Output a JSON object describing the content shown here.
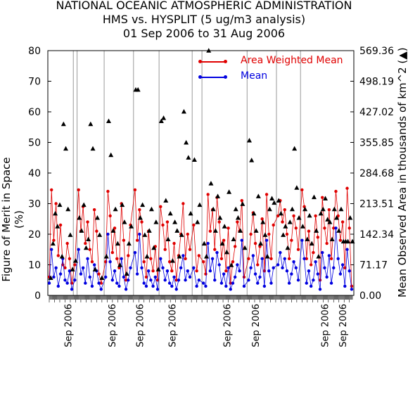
{
  "header": {
    "line1": "NATIONAL OCEANIC ATMOSPHERIC ADMINISTRATION",
    "line2": "HMS vs. HYSPLIT (5 ug/m3 analysis)",
    "line3": "01 Sep 2006 to 31 Aug 2006"
  },
  "legend": {
    "awm_label": "Area Weighted Mean",
    "mean_label": "Mean"
  },
  "axes": {
    "ylabel_left": "Figure of Merit in Space (%)",
    "ylabel_right": "Mean Observed Area in thousands of km^2 (▲)"
  },
  "colors": {
    "awm": "#e00000",
    "mean": "#0000e0",
    "area": "#000000",
    "grid": "#999999"
  },
  "chart_data": {
    "type": "line",
    "title": "",
    "ylim_left": [
      0,
      80
    ],
    "ylim_right": [
      0.0,
      569.36
    ],
    "yticks_left": [
      "0",
      "10",
      "20",
      "30",
      "40",
      "50",
      "60",
      "70",
      "80"
    ],
    "yticks_right": [
      "0.00",
      "71.17",
      "142.34",
      "213.51",
      "284.68",
      "355.85",
      "427.02",
      "498.19",
      "569.36"
    ],
    "x_tick_labels": [
      "Sep 2006",
      "Sep 2006",
      "Sep 2006",
      "Sep 2006",
      "Sep 2006",
      "Sep 2006",
      "Sep 2006",
      "Sep 2006"
    ],
    "x_tick_days": [
      25,
      83,
      120,
      163,
      236,
      274,
      366,
      390
    ],
    "segment_boundary_days": [
      32,
      37,
      73,
      112,
      146,
      190,
      203,
      263,
      302,
      334
    ],
    "n_days": 404,
    "series": [
      {
        "name": "Area Weighted Mean",
        "axis": "left",
        "x": [
          0,
          3,
          6,
          9,
          12,
          15,
          18,
          21,
          24,
          27,
          30,
          34,
          39,
          42,
          45,
          48,
          51,
          54,
          57,
          60,
          63,
          66,
          69,
          75,
          78,
          81,
          84,
          87,
          90,
          93,
          96,
          99,
          102,
          105,
          108,
          114,
          117,
          120,
          123,
          126,
          129,
          132,
          135,
          138,
          141,
          144,
          148,
          151,
          154,
          157,
          160,
          163,
          166,
          169,
          172,
          175,
          178,
          181,
          184,
          187,
          192,
          196,
          199,
          205,
          208,
          211,
          214,
          217,
          220,
          223,
          226,
          229,
          232,
          235,
          238,
          241,
          244,
          247,
          250,
          253,
          256,
          259,
          265,
          268,
          271,
          274,
          277,
          280,
          283,
          286,
          289,
          292,
          295,
          298,
          304,
          307,
          310,
          313,
          316,
          319,
          322,
          325,
          328,
          331,
          336,
          339,
          342,
          345,
          348,
          351,
          354,
          357,
          360,
          363,
          366,
          369,
          372,
          375,
          378,
          381,
          384,
          387,
          390,
          393,
          396,
          399,
          402
        ],
        "values": [
          6,
          34.5,
          18,
          30,
          13,
          23,
          10,
          9,
          17,
          12,
          4,
          10,
          34.5,
          21,
          29,
          17,
          24,
          15,
          11,
          28,
          21,
          7,
          4,
          11,
          34,
          26,
          14,
          22,
          12,
          9,
          30,
          18,
          5,
          13,
          23,
          34.5,
          18,
          28,
          24,
          11,
          6,
          21,
          12,
          8,
          16,
          5,
          29,
          23,
          15,
          24,
          11,
          8,
          17,
          5,
          13,
          20,
          30,
          12,
          20,
          15,
          23,
          8,
          13,
          11,
          7,
          33,
          21,
          28,
          15,
          32,
          24,
          12,
          18,
          8,
          22,
          4,
          11,
          16,
          24,
          21,
          31,
          6,
          12,
          20,
          27,
          17,
          10,
          16,
          25,
          8,
          33,
          20,
          12,
          23,
          26,
          31,
          24,
          28,
          20,
          12,
          18,
          26,
          22,
          15,
          34.5,
          29,
          12,
          21,
          10,
          14,
          26,
          19,
          5,
          32,
          22,
          17,
          28,
          12,
          22,
          34,
          26,
          18,
          24,
          9,
          35,
          22,
          3
        ]
      },
      {
        "name": "Mean",
        "axis": "left",
        "x": [
          0,
          3,
          6,
          9,
          12,
          15,
          18,
          21,
          24,
          27,
          30,
          34,
          39,
          42,
          45,
          48,
          51,
          54,
          57,
          60,
          63,
          66,
          69,
          75,
          78,
          81,
          84,
          87,
          90,
          93,
          96,
          99,
          102,
          105,
          108,
          114,
          117,
          120,
          123,
          126,
          129,
          132,
          135,
          138,
          141,
          144,
          148,
          151,
          154,
          157,
          160,
          163,
          166,
          169,
          172,
          175,
          178,
          181,
          184,
          187,
          192,
          196,
          199,
          205,
          208,
          211,
          214,
          217,
          220,
          223,
          226,
          229,
          232,
          235,
          238,
          241,
          244,
          247,
          250,
          253,
          256,
          259,
          265,
          268,
          271,
          274,
          277,
          280,
          283,
          286,
          289,
          292,
          295,
          298,
          304,
          307,
          310,
          313,
          316,
          319,
          322,
          325,
          328,
          331,
          336,
          339,
          342,
          345,
          348,
          351,
          354,
          357,
          360,
          363,
          366,
          369,
          372,
          375,
          378,
          381,
          384,
          387,
          390,
          393,
          396,
          399,
          402
        ],
        "values": [
          4,
          15,
          6,
          9,
          3,
          7,
          12,
          5,
          4,
          8,
          2,
          5,
          15,
          7,
          9,
          4,
          12,
          6,
          3,
          10,
          8,
          4,
          2,
          6,
          20,
          11,
          5,
          8,
          4,
          3,
          12,
          6,
          2,
          5,
          9,
          14,
          7,
          20,
          9,
          4,
          3,
          8,
          5,
          3,
          6,
          2,
          12,
          9,
          5,
          8,
          4,
          3,
          6,
          2,
          5,
          9,
          13,
          5,
          8,
          6,
          9,
          3,
          5,
          4,
          3,
          17,
          8,
          12,
          5,
          14,
          10,
          4,
          7,
          3,
          9,
          2,
          4,
          6,
          10,
          8,
          18,
          3,
          5,
          9,
          13,
          7,
          4,
          6,
          12,
          3,
          18,
          8,
          4,
          9,
          10,
          14,
          9,
          12,
          8,
          4,
          7,
          11,
          9,
          5,
          18,
          12,
          4,
          8,
          3,
          5,
          11,
          7,
          2,
          14,
          9,
          6,
          13,
          4,
          9,
          22,
          12,
          7,
          10,
          3,
          15,
          8,
          2
        ]
      },
      {
        "name": "Mean Observed Area",
        "axis": "right",
        "marker": "triangle",
        "x": [
          2,
          5,
          8,
          11,
          14,
          17,
          19,
          22,
          25,
          28,
          31,
          35,
          40,
          43,
          46,
          49,
          52,
          55,
          58,
          61,
          64,
          67,
          70,
          76,
          79,
          82,
          85,
          88,
          91,
          94,
          97,
          100,
          103,
          106,
          109,
          115,
          118,
          121,
          124,
          127,
          130,
          133,
          136,
          139,
          142,
          145,
          149,
          152,
          155,
          158,
          161,
          164,
          167,
          170,
          173,
          176,
          179,
          182,
          185,
          188,
          193,
          197,
          200,
          206,
          209,
          212,
          215,
          218,
          221,
          224,
          227,
          230,
          233,
          236,
          239,
          242,
          245,
          248,
          251,
          254,
          257,
          260,
          266,
          269,
          272,
          275,
          278,
          281,
          284,
          287,
          290,
          293,
          296,
          299,
          305,
          308,
          311,
          314,
          317,
          320,
          323,
          326,
          329,
          332,
          337,
          340,
          343,
          346,
          349,
          352,
          355,
          358,
          361,
          364,
          367,
          370,
          373,
          376,
          379,
          382,
          385,
          388,
          391,
          394,
          397,
          400,
          403
        ],
        "values": [
          40,
          120,
          190,
          160,
          210,
          90,
          398,
          341,
          200,
          140,
          60,
          80,
          180,
          150,
          210,
          110,
          130,
          398,
          341,
          60,
          180,
          140,
          40,
          90,
          405,
          326,
          150,
          200,
          120,
          70,
          210,
          170,
          50,
          120,
          160,
          478,
          478,
          180,
          210,
          140,
          90,
          150,
          200,
          110,
          170,
          60,
          405,
          412,
          220,
          130,
          190,
          80,
          170,
          150,
          90,
          140,
          427,
          355,
          320,
          190,
          315,
          170,
          210,
          120,
          90,
          569,
          260,
          200,
          150,
          230,
          180,
          120,
          160,
          100,
          240,
          70,
          130,
          200,
          180,
          150,
          212,
          110,
          360,
          314,
          190,
          150,
          230,
          120,
          170,
          140,
          90,
          200,
          225,
          215,
          220,
          190,
          140,
          160,
          110,
          170,
          200,
          341,
          250,
          180,
          160,
          200,
          130,
          185,
          120,
          228,
          150,
          90,
          190,
          200,
          225,
          176,
          170,
          130,
          200,
          180,
          150,
          200,
          125,
          125,
          125,
          180,
          125
        ]
      }
    ]
  }
}
